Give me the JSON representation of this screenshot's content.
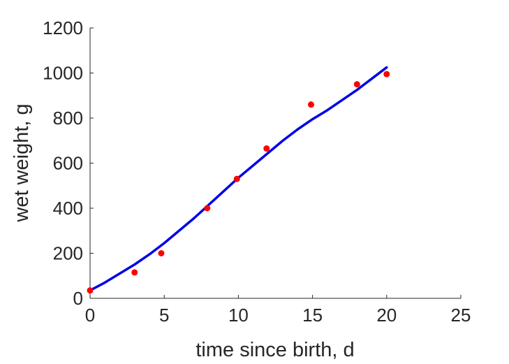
{
  "chart_data": {
    "type": "scatter",
    "title": "",
    "xlabel": "time since birth, d",
    "ylabel": "wet weight, g",
    "xlim": [
      0,
      25
    ],
    "ylim": [
      0,
      1200
    ],
    "xticks": [
      0,
      5,
      10,
      15,
      20,
      25
    ],
    "yticks": [
      0,
      200,
      400,
      600,
      800,
      1000,
      1200
    ],
    "grid": false,
    "series": [
      {
        "kind": "scatter",
        "color": "#ff0000",
        "x": [
          0,
          3,
          4.8,
          7.9,
          9.9,
          11.9,
          14.9,
          18,
          20
        ],
        "y": [
          35,
          115,
          200,
          400,
          530,
          665,
          860,
          950,
          995
        ]
      },
      {
        "kind": "line",
        "color": "#0000e6",
        "x": [
          0,
          1,
          2,
          3,
          4,
          5,
          6,
          7,
          8,
          9,
          10,
          11,
          12,
          13,
          14,
          15,
          16,
          17,
          18,
          19,
          20
        ],
        "y": [
          35,
          70,
          110,
          150,
          195,
          245,
          300,
          355,
          415,
          475,
          535,
          590,
          645,
          700,
          750,
          795,
          835,
          880,
          925,
          975,
          1025
        ]
      }
    ]
  }
}
